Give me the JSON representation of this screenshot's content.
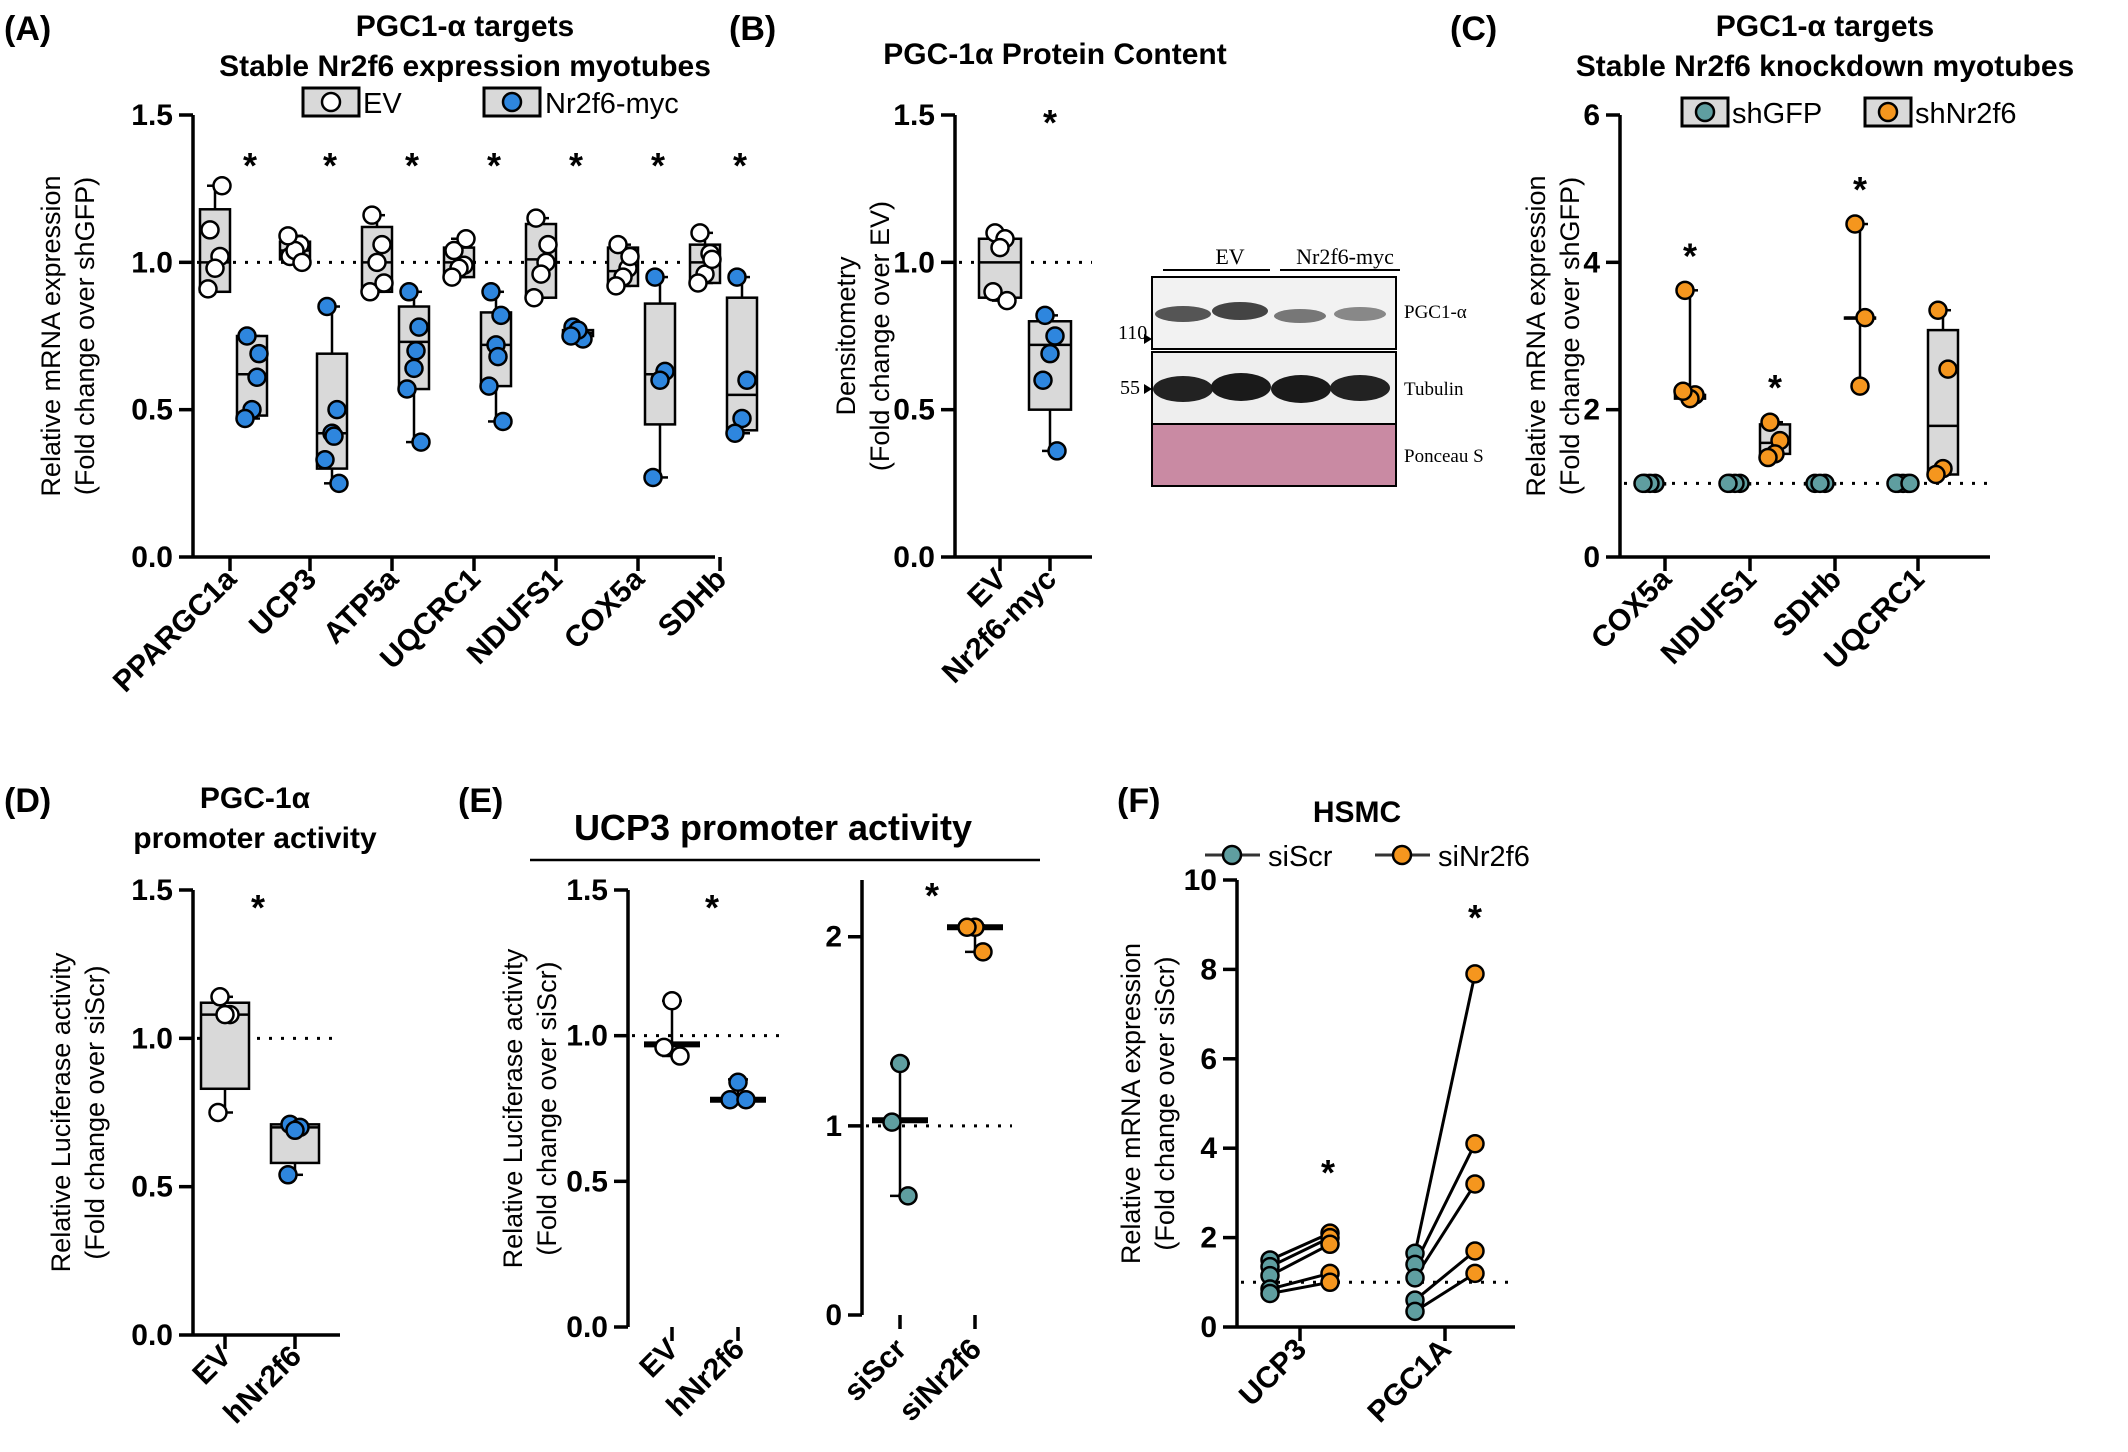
{
  "colors": {
    "ev": "#ffffff",
    "nr2f6": "#2e86de",
    "shgfp": "#5f9ea0",
    "orange": "#f5961e",
    "box_fill": "#d9d9d9",
    "ponceau": "#c98aa3"
  },
  "panels": {
    "A": {
      "letter": "(A)",
      "title": [
        "PGC1-α targets",
        "Stable Nr2f6 expression myotubes"
      ],
      "legend": [
        "EV",
        "Nr2f6-myc"
      ]
    },
    "B": {
      "letter": "(B)",
      "title": [
        "PGC-1α Protein Content"
      ],
      "blot": {
        "lanes": [
          "EV",
          "Nr2f6-myc"
        ],
        "bands": [
          "PGC1-α",
          "Tubulin",
          "Ponceau S"
        ],
        "markers": [
          "110",
          "55"
        ]
      }
    },
    "C": {
      "letter": "(C)",
      "title": [
        "PGC1-α targets",
        "Stable Nr2f6 knockdown myotubes"
      ],
      "legend": [
        "shGFP",
        "shNr2f6"
      ]
    },
    "D": {
      "letter": "(D)",
      "title": [
        "PGC-1α",
        "promoter activity"
      ]
    },
    "E": {
      "letter": "(E)",
      "title": [
        "UCP3 promoter activity"
      ]
    },
    "F": {
      "letter": "(F)",
      "title": [
        "HSMC"
      ],
      "legend": [
        "siScr",
        "siNr2f6"
      ]
    }
  },
  "chart_data": [
    {
      "id": "A",
      "type": "box",
      "ylabel": [
        "Relative mRNA expression",
        "(Fold change over shGFP)"
      ],
      "ylim": [
        0,
        1.5
      ],
      "yticks": [
        "0.0",
        "0.5",
        "1.0",
        "1.5"
      ],
      "reference_line": 1.0,
      "categories": [
        "PPARGC1a",
        "UCP3",
        "ATP5a",
        "UQCRC1",
        "NDUFS1",
        "COX5a",
        "SDHb"
      ],
      "significance": [
        "*",
        "*",
        "*",
        "*",
        "*",
        "*",
        "*"
      ],
      "series": [
        {
          "name": "EV",
          "color": "#ffffff",
          "groups": [
            {
              "points": [
                1.11,
                1.02,
                0.98,
                0.91,
                1.26
              ],
              "box": [
                0.9,
                1.0,
                1.18
              ]
            },
            {
              "points": [
                1.02,
                1.06,
                1.04,
                1.09,
                1.0
              ],
              "box": [
                1.01,
                1.04,
                1.07
              ]
            },
            {
              "points": [
                1.16,
                1.06,
                1.0,
                0.9,
                0.93
              ],
              "box": [
                0.9,
                1.0,
                1.12
              ]
            },
            {
              "points": [
                1.04,
                0.99,
                0.98,
                0.95,
                1.08
              ],
              "box": [
                0.95,
                1.0,
                1.05
              ]
            },
            {
              "points": [
                1.15,
                1.0,
                0.96,
                0.88,
                1.06
              ],
              "box": [
                0.88,
                1.01,
                1.13
              ]
            },
            {
              "points": [
                1.06,
                0.98,
                0.95,
                0.92,
                1.02
              ],
              "box": [
                0.92,
                0.97,
                1.05
              ]
            },
            {
              "points": [
                1.1,
                1.03,
                0.96,
                0.93,
                1.01
              ],
              "box": [
                0.93,
                1.0,
                1.06
              ]
            }
          ]
        },
        {
          "name": "Nr2f6-myc",
          "color": "#2e86de",
          "groups": [
            {
              "points": [
                0.75,
                0.61,
                0.5,
                0.47,
                0.69
              ],
              "box": [
                0.48,
                0.62,
                0.75
              ]
            },
            {
              "points": [
                0.85,
                0.5,
                0.42,
                0.33,
                0.25,
                0.41
              ],
              "box": [
                0.3,
                0.42,
                0.69
              ]
            },
            {
              "points": [
                0.9,
                0.78,
                0.64,
                0.57,
                0.39,
                0.7
              ],
              "box": [
                0.57,
                0.73,
                0.85
              ]
            },
            {
              "points": [
                0.9,
                0.82,
                0.72,
                0.58,
                0.46,
                0.68
              ],
              "box": [
                0.58,
                0.72,
                0.83
              ]
            },
            {
              "points": [
                0.78,
                0.74,
                0.77,
                0.75
              ],
              "box": [
                0.75,
                0.76,
                0.77
              ]
            },
            {
              "points": [
                0.95,
                0.63,
                0.6,
                0.27
              ],
              "box": [
                0.45,
                0.62,
                0.86
              ]
            },
            {
              "points": [
                0.95,
                0.6,
                0.47,
                0.42
              ],
              "box": [
                0.43,
                0.55,
                0.88
              ]
            }
          ]
        }
      ]
    },
    {
      "id": "B",
      "type": "box",
      "ylabel": [
        "Densitometry",
        "(Fold change over EV)"
      ],
      "ylim": [
        0,
        1.5
      ],
      "yticks": [
        "0.0",
        "0.5",
        "1.0",
        "1.5"
      ],
      "reference_line": 1.0,
      "categories": [
        "EV",
        "Nr2f6-myc"
      ],
      "significance": "*",
      "groups": [
        {
          "points": [
            1.1,
            1.08,
            1.05,
            0.9,
            0.87
          ],
          "box": [
            0.88,
            1.0,
            1.08
          ]
        },
        {
          "points": [
            0.82,
            0.75,
            0.69,
            0.6,
            0.36
          ],
          "box": [
            0.5,
            0.72,
            0.8
          ]
        }
      ]
    },
    {
      "id": "C",
      "type": "box",
      "ylabel": [
        "Relative mRNA expression",
        "(Fold change over shGFP)"
      ],
      "ylim": [
        0,
        6
      ],
      "yticks": [
        "0",
        "2",
        "4",
        "6"
      ],
      "reference_line": 1,
      "categories": [
        "COX5a",
        "NDUFS1",
        "SDHb",
        "UQCRC1"
      ],
      "significance": [
        "*",
        "*",
        "*",
        ""
      ],
      "series": [
        {
          "name": "shGFP",
          "color": "#5f9ea0",
          "groups": [
            {
              "points": [
                1,
                1,
                1,
                1
              ],
              "box": [
                1,
                1,
                1
              ]
            },
            {
              "points": [
                1,
                1,
                1,
                1
              ],
              "box": [
                1,
                1,
                1
              ]
            },
            {
              "points": [
                1,
                1,
                1
              ],
              "box": [
                1,
                1,
                1
              ]
            },
            {
              "points": [
                1,
                1,
                1,
                1,
                1
              ],
              "box": [
                1,
                1,
                1
              ]
            }
          ]
        },
        {
          "name": "shNr2f6",
          "color": "#f5961e",
          "groups": [
            {
              "points": [
                3.62,
                2.2,
                2.15,
                2.25
              ],
              "box": [
                2.15,
                2.2,
                2.2
              ]
            },
            {
              "points": [
                1.83,
                1.58,
                1.4,
                1.35
              ],
              "box": [
                1.4,
                1.55,
                1.8
              ]
            },
            {
              "points": [
                4.52,
                3.25,
                2.32
              ],
              "box": [
                3.25,
                3.25,
                3.25
              ]
            },
            {
              "points": [
                3.35,
                2.55,
                1.2,
                1.12
              ],
              "box": [
                1.12,
                1.78,
                3.08
              ]
            }
          ]
        }
      ]
    },
    {
      "id": "D",
      "type": "box",
      "ylabel": [
        "Relative Luciferase activity",
        "(Fold change over siScr)"
      ],
      "ylim": [
        0,
        1.5
      ],
      "yticks": [
        "0.0",
        "0.5",
        "1.0",
        "1.5"
      ],
      "reference_line": 1.0,
      "categories": [
        "EV",
        "hNr2f6"
      ],
      "significance": "*",
      "groups": [
        {
          "points": [
            1.14,
            1.08,
            1.08,
            0.75
          ],
          "box": [
            0.83,
            1.08,
            1.12
          ]
        },
        {
          "points": [
            0.71,
            0.7,
            0.69,
            0.54
          ],
          "box": [
            0.58,
            0.7,
            0.71
          ]
        }
      ]
    },
    {
      "id": "E1",
      "type": "scatter",
      "ylabel": [
        "Relative Luciferase activity",
        "(Fold change over siScr)"
      ],
      "ylim": [
        0,
        1.5
      ],
      "yticks": [
        "0.0",
        "0.5",
        "1.0",
        "1.5"
      ],
      "reference_line": 1.0,
      "categories": [
        "EV",
        "hNr2f6"
      ],
      "significance": "*",
      "groups": [
        {
          "points": [
            1.12,
            0.96,
            0.93
          ],
          "mean": 0.97,
          "range": [
            0.93,
            1.12
          ]
        },
        {
          "points": [
            0.84,
            0.78,
            0.78
          ],
          "mean": 0.78,
          "range": [
            0.77,
            0.85
          ]
        }
      ]
    },
    {
      "id": "E2",
      "type": "scatter",
      "ylim": [
        0,
        2.3
      ],
      "yticks": [
        "0",
        "1",
        "2"
      ],
      "reference_line": 1,
      "categories": [
        "siScr",
        "siNr2f6"
      ],
      "significance": "*",
      "groups": [
        {
          "points": [
            1.33,
            1.02,
            0.63
          ],
          "mean": 1.03,
          "range": [
            0.63,
            1.33
          ]
        },
        {
          "points": [
            2.05,
            2.05,
            1.92
          ],
          "mean": 2.05,
          "range": [
            1.92,
            2.06
          ]
        }
      ]
    },
    {
      "id": "F",
      "type": "paired-line",
      "ylabel": [
        "Relative mRNA expression",
        "(Fold change over siScr)"
      ],
      "ylim": [
        0,
        10
      ],
      "yticks": [
        "0",
        "2",
        "4",
        "6",
        "8",
        "10"
      ],
      "reference_line": 1,
      "categories": [
        "UCP3",
        "PGC1A"
      ],
      "significance": [
        "*",
        "*"
      ],
      "series": [
        {
          "name": "siScr"
        },
        {
          "name": "siNr2f6"
        }
      ],
      "pairs": [
        [
          [
            1.5,
            2.1
          ],
          [
            1.35,
            2.0
          ],
          [
            1.15,
            1.85
          ],
          [
            0.85,
            1.2
          ],
          [
            0.75,
            1.0
          ]
        ],
        [
          [
            1.65,
            7.9
          ],
          [
            1.4,
            4.1
          ],
          [
            1.1,
            3.2
          ],
          [
            0.6,
            1.7
          ],
          [
            0.35,
            1.2
          ]
        ]
      ]
    }
  ]
}
